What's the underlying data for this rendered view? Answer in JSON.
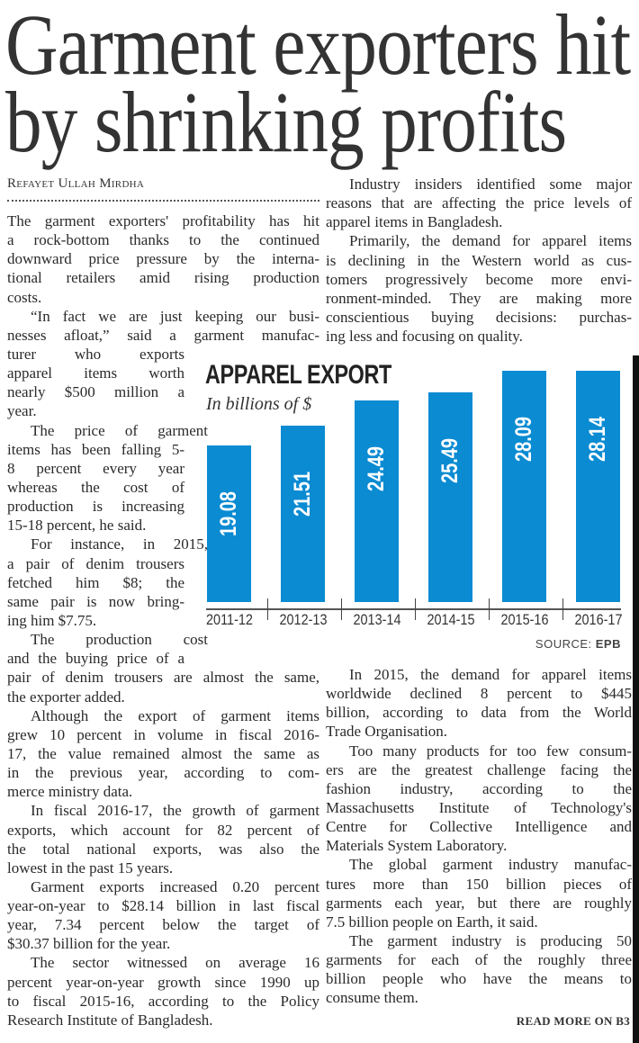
{
  "headline": [
    "Garment exporters hit",
    "by shrinking profits"
  ],
  "byline": "Refayet Ullah Mirdha",
  "left_column": [
    {
      "indent": false,
      "lines": [
        "The garment exporters' profitability has hit",
        "a rock-bottom thanks to the continued",
        "downward price pressure by the interna-",
        "tional retailers amid rising production",
        "costs."
      ]
    },
    {
      "indent": true,
      "lines": [
        "“In fact we are just keeping our busi-",
        "nesses afloat,” said a garment manufac-",
        "turer who exports",
        "apparel items worth",
        "nearly $500 million a",
        "year."
      ]
    },
    {
      "indent": true,
      "lines": [
        "The price of garment",
        "items has been falling 5-",
        "8 percent every year",
        "whereas the cost of",
        "production is increasing",
        "15-18 percent, he said."
      ]
    },
    {
      "indent": true,
      "lines": [
        "For instance, in 2015,",
        "a pair of denim trousers",
        "fetched him $8; the",
        "same pair is now bring-",
        "ing him $7.75."
      ]
    },
    {
      "indent": true,
      "lines": [
        "The production cost",
        "and the buying price of a",
        "pair of denim trousers are almost the same,",
        "the exporter added."
      ]
    },
    {
      "indent": true,
      "lines": [
        "Although the export of garment items",
        "grew 10 percent in volume in fiscal 2016-",
        "17, the value remained almost the same as",
        "in the previous year, according to com-",
        "merce ministry data."
      ]
    },
    {
      "indent": true,
      "lines": [
        "In fiscal 2016-17, the growth of garment",
        "exports, which account for 82 percent of",
        "the total national exports, was also the",
        "lowest in the past 15 years."
      ]
    },
    {
      "indent": true,
      "lines": [
        "Garment exports increased 0.20 percent",
        "year-on-year to $28.14 billion in last fiscal",
        "year, 7.34 percent below the target of",
        "$30.37 billion for the year."
      ]
    },
    {
      "indent": true,
      "lines": [
        "The sector witnessed on average 16",
        "percent year-on-year growth since 1990 up",
        "to fiscal 2015-16, according to the Policy",
        "Research Institute of Bangladesh."
      ]
    }
  ],
  "right_column_top": [
    {
      "indent": true,
      "lines": [
        "Industry insiders identified some major",
        "reasons that are affecting the price levels of",
        "apparel items in Bangladesh."
      ]
    },
    {
      "indent": true,
      "lines": [
        "Primarily, the demand for apparel items",
        "is declining in the Western world as cus-",
        "tomers progressively become more envi-",
        "ronment-minded. They are making more",
        "conscientious buying decisions: purchas-",
        "ing less and focusing on quality."
      ]
    }
  ],
  "right_column_bottom": [
    {
      "indent": true,
      "lines": [
        "In 2015, the demand for apparel items",
        "worldwide declined 8 percent to $445",
        "billion, according to data from the World",
        "Trade Organisation."
      ]
    },
    {
      "indent": true,
      "lines": [
        "Too many products for too few consum-",
        "ers are the greatest challenge facing the",
        "fashion industry, according to the",
        "Massachusetts Institute of Technology's",
        "Centre for Collective Intelligence and",
        "Materials System Laboratory."
      ]
    },
    {
      "indent": true,
      "lines": [
        "The global garment industry manufac-",
        "tures more than 150 billion pieces of",
        "garments each year, but there are roughly",
        "7.5 billion people on Earth, it said."
      ]
    },
    {
      "indent": true,
      "lines": [
        "The garment industry is producing 50",
        "garments for each of the roughly three",
        "billion people who have the means to",
        "consume them."
      ]
    }
  ],
  "read_more": "READ MORE ON B3",
  "chart_data": {
    "type": "bar",
    "title": "APPAREL EXPORT",
    "subtitle": "In billions of $",
    "categories": [
      "2011-12",
      "2012-13",
      "2013-14",
      "2014-15",
      "2015-16",
      "2016-17"
    ],
    "values": [
      19.08,
      21.51,
      24.49,
      25.49,
      28.09,
      28.14
    ],
    "value_labels": [
      "19.08",
      "21.51",
      "24.49",
      "25.49",
      "28.09",
      "28.14"
    ],
    "ylim": [
      0,
      28.14
    ],
    "xlabel": "",
    "ylabel": "",
    "source_prefix": "SOURCE:",
    "source": "EPB",
    "bar_color": "#0a8bd2"
  }
}
